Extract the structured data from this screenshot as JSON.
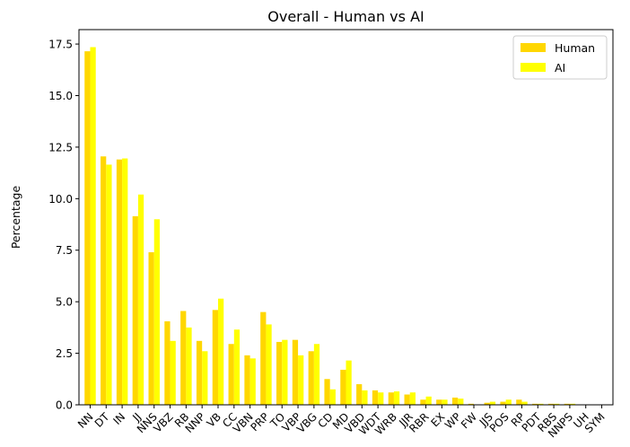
{
  "chart_data": {
    "type": "bar",
    "title": "Overall - Human vs AI",
    "xlabel": "",
    "ylabel": "Percentage",
    "ylim": [
      0,
      18.2
    ],
    "yticks": [
      0.0,
      2.5,
      5.0,
      7.5,
      10.0,
      12.5,
      15.0,
      17.5
    ],
    "ytick_labels": [
      "0.0",
      "2.5",
      "5.0",
      "7.5",
      "10.0",
      "12.5",
      "15.0",
      "17.5"
    ],
    "grid": false,
    "legend_position": "top-right",
    "categories": [
      "NN",
      "DT",
      "IN",
      "JJ",
      "NNS",
      "VBZ",
      "RB",
      "NNP",
      "VB",
      "CC",
      "VBN",
      "PRP",
      "TO",
      "VBP",
      "VBG",
      "CD",
      "MD",
      "VBD",
      "WDT",
      "WRB",
      "JJR",
      "RBR",
      "EX",
      "WP",
      "FW",
      "JJS",
      "POS",
      "RP",
      "PDT",
      "RBS",
      "NNPS",
      "UH",
      "SYM"
    ],
    "series": [
      {
        "name": "Human",
        "color": "#FFD700",
        "values": [
          17.15,
          12.05,
          11.9,
          9.15,
          7.4,
          4.05,
          4.55,
          3.1,
          4.6,
          2.95,
          2.4,
          4.5,
          3.05,
          3.15,
          2.6,
          1.25,
          1.7,
          1.0,
          0.7,
          0.6,
          0.5,
          0.25,
          0.25,
          0.35,
          0.05,
          0.1,
          0.15,
          0.25,
          0.05,
          0.05,
          0.05,
          0.02,
          0.0
        ]
      },
      {
        "name": "AI",
        "color": "#FFFF00",
        "values": [
          17.35,
          11.65,
          11.95,
          10.2,
          9.0,
          3.1,
          3.75,
          2.6,
          5.15,
          3.65,
          2.25,
          3.9,
          3.15,
          2.4,
          2.95,
          0.75,
          2.15,
          0.7,
          0.6,
          0.65,
          0.6,
          0.4,
          0.25,
          0.3,
          0.02,
          0.15,
          0.25,
          0.15,
          0.05,
          0.05,
          0.05,
          0.0,
          0.0
        ]
      }
    ]
  }
}
